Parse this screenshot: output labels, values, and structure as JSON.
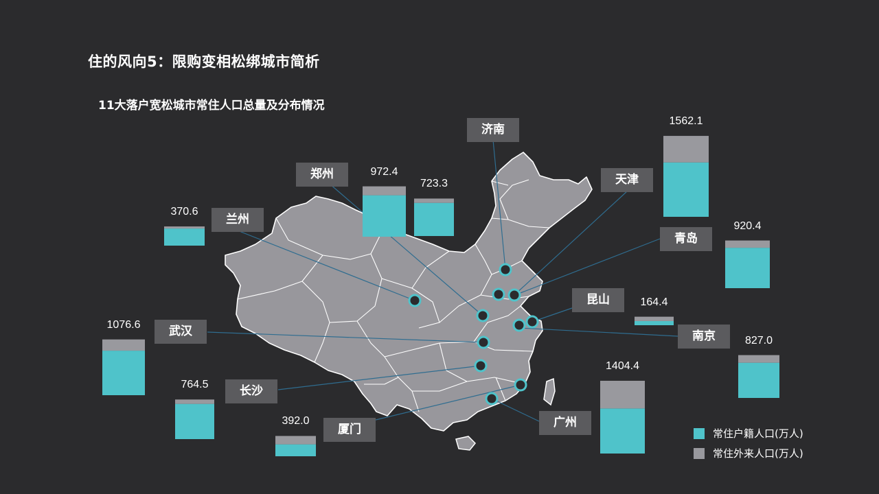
{
  "title": "住的风向5：限购变相松绑城市简析",
  "subtitle": "11大落户宽松城市常住人口总量及分布情况",
  "colors": {
    "background": "#2b2b2d",
    "registered": "#4fc3ca",
    "migrant": "#99999e",
    "map_fill": "#98979c",
    "label_bg": "#5b5b5e"
  },
  "legend": [
    {
      "label": "常住户籍人口(万人)",
      "color": "#4fc3ca"
    },
    {
      "label": "常住外来人口(万人)",
      "color": "#99999e"
    }
  ],
  "chart_data": {
    "type": "bar",
    "stacked": true,
    "title": "11大落户宽松城市常住人口总量及分布情况",
    "series": [
      {
        "name": "常住户籍人口(万人)",
        "color": "#4fc3ca"
      },
      {
        "name": "常住外来人口(万人)",
        "color": "#99999e"
      }
    ],
    "cities": [
      {
        "name": "兰州",
        "total": 370.6,
        "total_label": "370.6",
        "registered": 330,
        "migrant": 40.6
      },
      {
        "name": "郑州",
        "total": 972.4,
        "total_label": "972.4",
        "registered": 800,
        "migrant": 172.4
      },
      {
        "name": "济南",
        "total": 723.3,
        "total_label": "723.3",
        "registered": 640,
        "migrant": 83.3
      },
      {
        "name": "天津",
        "total": 1562.1,
        "total_label": "1562.1",
        "registered": 1050,
        "migrant": 512.1
      },
      {
        "name": "青岛",
        "total": 920.4,
        "total_label": "920.4",
        "registered": 780,
        "migrant": 140.4
      },
      {
        "name": "昆山",
        "total": 164.4,
        "total_label": "164.4",
        "registered": 80,
        "migrant": 84.4
      },
      {
        "name": "南京",
        "total": 827.0,
        "total_label": "827.0",
        "registered": 680,
        "migrant": 147.0
      },
      {
        "name": "广州",
        "total": 1404.4,
        "total_label": "1404.4",
        "registered": 870,
        "migrant": 534.4
      },
      {
        "name": "厦门",
        "total": 392.0,
        "total_label": "392.0",
        "registered": 230,
        "migrant": 162.0
      },
      {
        "name": "长沙",
        "total": 764.5,
        "total_label": "764.5",
        "registered": 680,
        "migrant": 84.5
      },
      {
        "name": "武汉",
        "total": 1076.6,
        "total_label": "1076.6",
        "registered": 860,
        "migrant": 216.6
      }
    ]
  }
}
